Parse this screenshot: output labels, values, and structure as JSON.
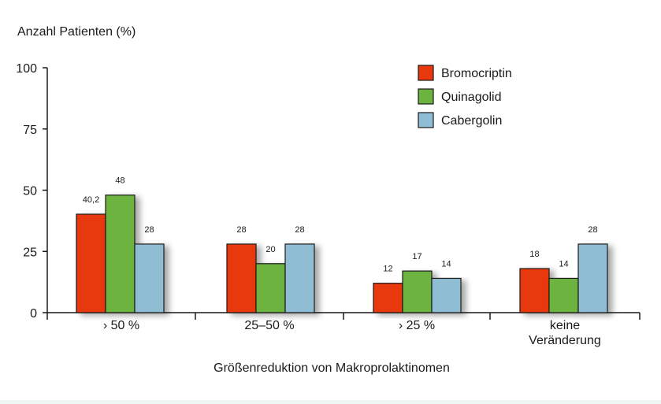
{
  "chart_data": {
    "type": "bar",
    "ylabel": "Anzahl Patienten (%)",
    "xlabel": "Größenreduktion von Makroprolaktinomen",
    "ylim": [
      0,
      100
    ],
    "yticks": [
      "0",
      "25",
      "50",
      "75",
      "100"
    ],
    "categories": [
      "› 50 %",
      "25–50 %",
      "› 25 %",
      "keine Veränderung"
    ],
    "category_lines": [
      [
        "› 50 %"
      ],
      [
        "25–50 %"
      ],
      [
        "› 25 %"
      ],
      [
        "keine",
        "Veränderung"
      ]
    ],
    "series": [
      {
        "name": "Bromocriptin",
        "color": "#e8380d",
        "values": [
          40.2,
          28,
          12,
          18
        ],
        "labels": [
          "40,2",
          "28",
          "12",
          "18"
        ]
      },
      {
        "name": "Quinagolid",
        "color": "#6db33f",
        "values": [
          48,
          20,
          17,
          14
        ],
        "labels": [
          "48",
          "20",
          "17",
          "14"
        ]
      },
      {
        "name": "Cabergolin",
        "color": "#8fbdd3",
        "values": [
          28,
          28,
          14,
          28
        ],
        "labels": [
          "28",
          "28",
          "14",
          "28"
        ]
      }
    ],
    "legend_position": "top-right",
    "grid": false
  }
}
